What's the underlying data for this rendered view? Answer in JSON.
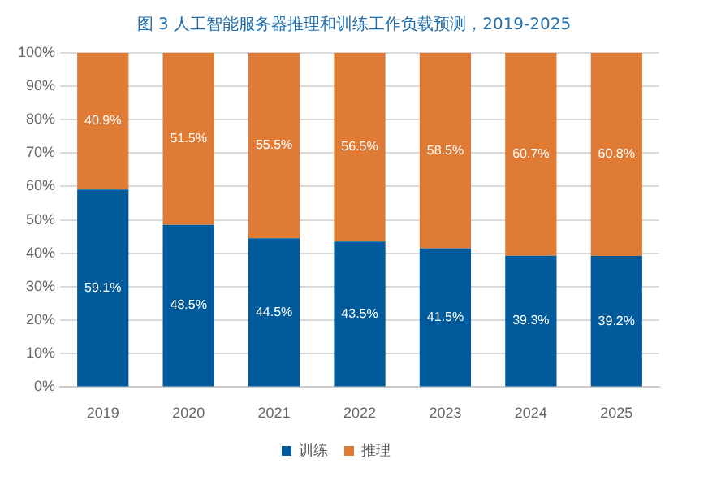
{
  "chart_data": {
    "type": "bar",
    "stacked": true,
    "title": "图 3 人工智能服务器推理和训练工作负载预测，2019-2025",
    "categories": [
      "2019",
      "2020",
      "2021",
      "2022",
      "2023",
      "2024",
      "2025"
    ],
    "series": [
      {
        "name": "训练",
        "color": "#005b9c",
        "values": [
          59.1,
          48.5,
          44.5,
          43.5,
          41.5,
          39.3,
          39.2
        ],
        "value_labels": [
          "59.1%",
          "48.5%",
          "44.5%",
          "43.5%",
          "41.5%",
          "39.3%",
          "39.2%"
        ]
      },
      {
        "name": "推理",
        "color": "#e07b35",
        "values": [
          40.9,
          51.5,
          55.5,
          56.5,
          58.5,
          60.7,
          60.8
        ],
        "value_labels": [
          "40.9%",
          "51.5%",
          "55.5%",
          "56.5%",
          "58.5%",
          "60.7%",
          "60.8%"
        ]
      }
    ],
    "ylim": [
      0,
      100
    ],
    "yticks": [
      {
        "value": 0,
        "label": "0%"
      },
      {
        "value": 10,
        "label": "10%"
      },
      {
        "value": 20,
        "label": "20%"
      },
      {
        "value": 30,
        "label": "30%"
      },
      {
        "value": 40,
        "label": "40%"
      },
      {
        "value": 50,
        "label": "50%"
      },
      {
        "value": 60,
        "label": "60%"
      },
      {
        "value": 70,
        "label": "70%"
      },
      {
        "value": 80,
        "label": "80%"
      },
      {
        "value": 90,
        "label": "90%"
      },
      {
        "value": 100,
        "label": "100%"
      }
    ],
    "grid": "y",
    "legend": "bottom"
  }
}
